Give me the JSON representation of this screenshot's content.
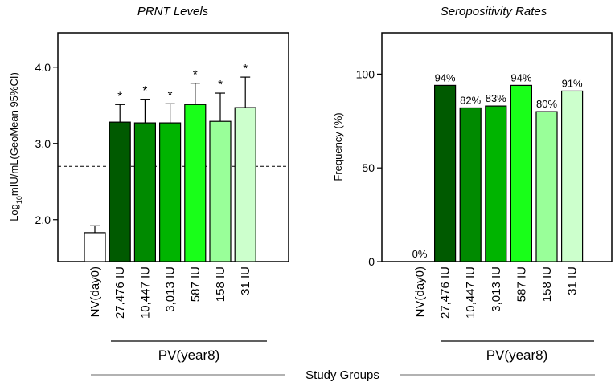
{
  "chart_data": [
    {
      "type": "bar",
      "title": "PRNT Levels",
      "ylabel_prefix": "Log",
      "ylabel_sub": "10",
      "ylabel_rest": "mIU/mL(GeoMean 95%CI)",
      "ylim": [
        1.45,
        4.45
      ],
      "yticks": [
        "2.0",
        "3.0",
        "4.0"
      ],
      "ytick_values": [
        2.0,
        3.0,
        4.0
      ],
      "reference_line": 2.7,
      "categories": [
        "NV(day0)",
        "27,476 IU",
        "10,447 IU",
        "3,013 IU",
        "587 IU",
        "158 IU",
        "31 IU"
      ],
      "values": [
        1.83,
        3.28,
        3.27,
        3.27,
        3.51,
        3.29,
        3.47
      ],
      "error_upper": [
        1.92,
        3.51,
        3.58,
        3.52,
        3.79,
        3.66,
        3.87
      ],
      "significance": [
        "",
        "*",
        "*",
        "*",
        "*",
        "*",
        "*"
      ],
      "colors": [
        "#ffffff",
        "#005a00",
        "#008a00",
        "#00b400",
        "#19ff19",
        "#99ff99",
        "#ccffcc"
      ],
      "group_label": "PV(year8)"
    },
    {
      "type": "bar",
      "title": "Seropositivity Rates",
      "ylabel": "Frequency (%)",
      "ylim": [
        0,
        122
      ],
      "yticks": [
        "0",
        "50",
        "100"
      ],
      "ytick_values": [
        0,
        50,
        100
      ],
      "categories": [
        "NV(day0)",
        "27,476 IU",
        "10,447 IU",
        "3,013 IU",
        "587 IU",
        "158 IU",
        "31 IU"
      ],
      "values": [
        0,
        94,
        82,
        83,
        94,
        80,
        91
      ],
      "data_labels": [
        "0%",
        "94%",
        "82%",
        "83%",
        "94%",
        "80%",
        "91%"
      ],
      "colors": [
        "#ffffff",
        "#005a00",
        "#008a00",
        "#00b400",
        "#19ff19",
        "#99ff99",
        "#ccffcc"
      ],
      "group_label": "PV(year8)"
    }
  ],
  "footer": {
    "study_groups_label": "Study Groups"
  }
}
